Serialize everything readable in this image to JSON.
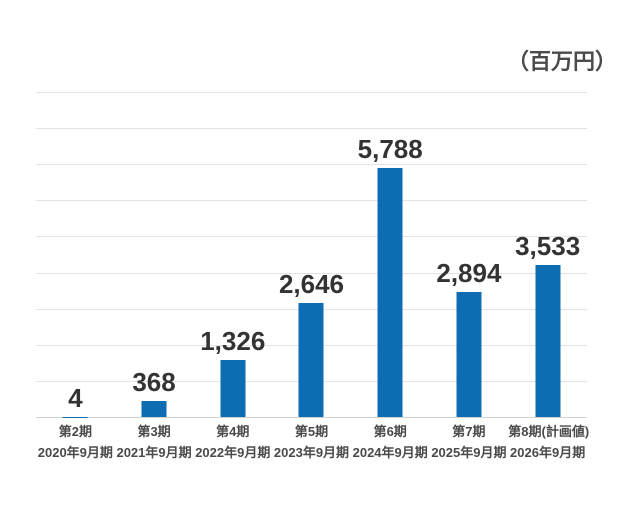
{
  "unit_label": "（百万円）",
  "colors": {
    "background": "#ffffff",
    "bar": "#0e6cb3",
    "gridline": "#e4e4e4",
    "baseline": "#d2d2d2",
    "value_label": "#333333",
    "axis_label": "#4a4a4a",
    "unit_label": "#4a4a4a"
  },
  "chart_data": {
    "type": "bar",
    "title": "",
    "unit": "（百万円）",
    "categories": [
      "第2期",
      "第3期",
      "第4期",
      "第5期",
      "第6期",
      "第7期",
      "第8期(計画値)"
    ],
    "category_sublabels": [
      "2020年9月期",
      "2021年9月期",
      "2022年9月期",
      "2023年9月期",
      "2024年9月期",
      "2025年9月期",
      "2026年9月期"
    ],
    "values": [
      4,
      368,
      1326,
      2646,
      5788,
      2894,
      3533
    ],
    "value_labels": [
      "4",
      "368",
      "1,326",
      "2,646",
      "5,788",
      "2,894",
      "3,533"
    ],
    "xlabel": "",
    "ylabel": "",
    "ylim": [
      0,
      7550
    ],
    "gridline_count": 10,
    "grid": true,
    "legend": "none",
    "y_axis_ticks_visible": false
  }
}
